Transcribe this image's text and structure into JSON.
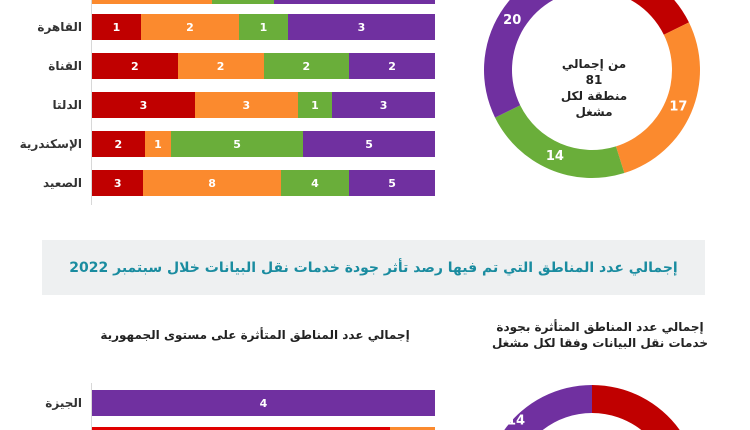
{
  "colors": {
    "red": "#c00000",
    "orange": "#fb8a2e",
    "green": "#6aae3a",
    "purple": "#7030a0",
    "title": "#1a8ca0"
  },
  "chart_data": [
    {
      "type": "bar",
      "stacked": true,
      "orientation": "horizontal",
      "categories": [
        "القاهرة",
        "القناة",
        "الدلتا",
        "الإسكندرية",
        "الصعيد"
      ],
      "series": [
        {
          "name": "red",
          "values": [
            1,
            2,
            3,
            2,
            3
          ]
        },
        {
          "name": "orange",
          "values": [
            2,
            2,
            3,
            1,
            8
          ]
        },
        {
          "name": "green",
          "values": [
            1,
            2,
            1,
            5,
            4
          ]
        },
        {
          "name": "purple",
          "values": [
            3,
            2,
            3,
            5,
            5
          ]
        }
      ]
    },
    {
      "type": "pie",
      "donut": true,
      "center_text": [
        "من إجمالي 81",
        "منطقة لكل",
        "مشغل"
      ],
      "slices": [
        {
          "name": "red",
          "value": 11
        },
        {
          "name": "orange",
          "value": 17
        },
        {
          "name": "green",
          "value": 14
        },
        {
          "name": "purple",
          "value": 20
        }
      ]
    },
    {
      "type": "bar",
      "stacked": true,
      "orientation": "horizontal",
      "title": "إجمالي عدد المناطق المتأثرة على مستوى الجمهورية",
      "categories": [
        "الجيزة"
      ],
      "series": [
        {
          "name": "purple",
          "values": [
            4
          ]
        }
      ]
    },
    {
      "type": "pie",
      "donut": true,
      "title": "إجمالي عدد المناطق المتأثرة بجودة خدمات نقل البيانات وفقا لكل مشغل",
      "slices": [
        {
          "name": "purple",
          "value": 14
        }
      ]
    }
  ],
  "banner": {
    "title": "إجمالي عدد المناطق التي تم فيها رصد تأثر جودة خدمات نقل البيانات خلال سبتمبر 2022"
  },
  "subtitles": {
    "left": "إجمالي عدد المناطق المتأثرة على مستوى الجمهورية",
    "right_line1": "إجمالي عدد المناطق المتأثرة بجودة",
    "right_line2": "خدمات نقل البيانات وفقا لكل مشغل"
  }
}
